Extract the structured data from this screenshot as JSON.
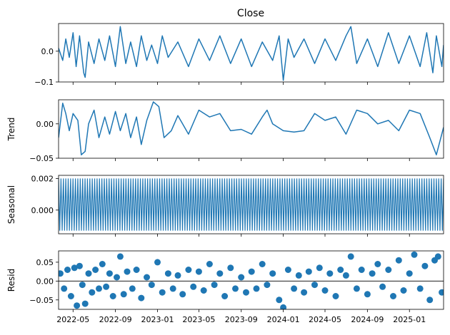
{
  "chart_data": {
    "type": "line",
    "title": "Close",
    "color": "#1f77b4",
    "x_range": [
      "2022-03-20",
      "2025-04-10"
    ],
    "x_ticks": [
      "2022-05",
      "2022-09",
      "2023-01",
      "2023-05",
      "2023-09",
      "2024-01",
      "2024-05",
      "2024-09",
      "2025-01"
    ],
    "panels": [
      {
        "ylabel": "",
        "kind": "line",
        "ylim": [
          -0.1,
          0.09
        ],
        "y_ticks": [
          -0.1,
          0.0
        ],
        "y_tick_labels": [
          "−0.1",
          "0.0"
        ],
        "points": [
          [
            "2022-03-20",
            0.01
          ],
          [
            "2022-04-01",
            -0.03
          ],
          [
            "2022-04-10",
            0.04
          ],
          [
            "2022-04-20",
            -0.02
          ],
          [
            "2022-05-01",
            0.06
          ],
          [
            "2022-05-10",
            -0.05
          ],
          [
            "2022-05-20",
            0.05
          ],
          [
            "2022-06-01",
            -0.07
          ],
          [
            "2022-06-05",
            -0.085
          ],
          [
            "2022-06-15",
            0.03
          ],
          [
            "2022-07-01",
            -0.04
          ],
          [
            "2022-07-15",
            0.04
          ],
          [
            "2022-08-01",
            -0.03
          ],
          [
            "2022-08-15",
            0.05
          ],
          [
            "2022-09-01",
            -0.05
          ],
          [
            "2022-09-15",
            0.08
          ],
          [
            "2022-10-01",
            -0.04
          ],
          [
            "2022-10-15",
            0.03
          ],
          [
            "2022-11-01",
            -0.05
          ],
          [
            "2022-11-15",
            0.05
          ],
          [
            "2022-12-01",
            -0.03
          ],
          [
            "2022-12-15",
            0.02
          ],
          [
            "2023-01-01",
            -0.04
          ],
          [
            "2023-01-15",
            0.05
          ],
          [
            "2023-02-01",
            -0.02
          ],
          [
            "2023-03-01",
            0.03
          ],
          [
            "2023-04-01",
            -0.05
          ],
          [
            "2023-05-01",
            0.04
          ],
          [
            "2023-06-01",
            -0.03
          ],
          [
            "2023-07-01",
            0.05
          ],
          [
            "2023-08-01",
            -0.04
          ],
          [
            "2023-09-01",
            0.04
          ],
          [
            "2023-10-01",
            -0.05
          ],
          [
            "2023-11-01",
            0.03
          ],
          [
            "2023-12-01",
            -0.03
          ],
          [
            "2023-12-20",
            0.05
          ],
          [
            "2024-01-01",
            -0.095
          ],
          [
            "2024-01-15",
            0.04
          ],
          [
            "2024-02-01",
            -0.02
          ],
          [
            "2024-03-01",
            0.04
          ],
          [
            "2024-04-01",
            -0.04
          ],
          [
            "2024-05-01",
            0.04
          ],
          [
            "2024-06-01",
            -0.03
          ],
          [
            "2024-07-01",
            0.05
          ],
          [
            "2024-07-15",
            0.08
          ],
          [
            "2024-08-01",
            -0.04
          ],
          [
            "2024-09-01",
            0.04
          ],
          [
            "2024-10-01",
            -0.05
          ],
          [
            "2024-11-01",
            0.06
          ],
          [
            "2024-12-01",
            -0.04
          ],
          [
            "2025-01-01",
            0.05
          ],
          [
            "2025-02-01",
            -0.05
          ],
          [
            "2025-02-20",
            0.06
          ],
          [
            "2025-03-10",
            -0.07
          ],
          [
            "2025-03-20",
            0.05
          ],
          [
            "2025-04-05",
            -0.05
          ],
          [
            "2025-04-10",
            0.02
          ]
        ]
      },
      {
        "ylabel": "Trend",
        "kind": "line",
        "ylim": [
          -0.05,
          0.035
        ],
        "y_ticks": [
          -0.05,
          0.0
        ],
        "y_tick_labels": [
          "−0.05",
          "0.00"
        ],
        "points": [
          [
            "2022-03-20",
            -0.02
          ],
          [
            "2022-04-01",
            0.03
          ],
          [
            "2022-04-10",
            0.015
          ],
          [
            "2022-04-20",
            -0.01
          ],
          [
            "2022-05-01",
            0.015
          ],
          [
            "2022-05-15",
            0.005
          ],
          [
            "2022-05-25",
            -0.045
          ],
          [
            "2022-06-05",
            -0.04
          ],
          [
            "2022-06-15",
            0.0
          ],
          [
            "2022-07-01",
            0.02
          ],
          [
            "2022-07-15",
            -0.02
          ],
          [
            "2022-08-01",
            0.01
          ],
          [
            "2022-08-15",
            -0.015
          ],
          [
            "2022-09-01",
            0.018
          ],
          [
            "2022-09-15",
            -0.01
          ],
          [
            "2022-10-01",
            0.015
          ],
          [
            "2022-10-15",
            -0.02
          ],
          [
            "2022-11-01",
            0.01
          ],
          [
            "2022-11-15",
            -0.03
          ],
          [
            "2022-12-01",
            0.005
          ],
          [
            "2022-12-20",
            0.032
          ],
          [
            "2023-01-05",
            0.025
          ],
          [
            "2023-01-20",
            -0.02
          ],
          [
            "2023-02-10",
            -0.01
          ],
          [
            "2023-03-01",
            0.012
          ],
          [
            "2023-04-01",
            -0.015
          ],
          [
            "2023-05-01",
            0.02
          ],
          [
            "2023-06-01",
            0.01
          ],
          [
            "2023-07-01",
            0.015
          ],
          [
            "2023-08-01",
            -0.01
          ],
          [
            "2023-09-01",
            -0.008
          ],
          [
            "2023-10-01",
            -0.015
          ],
          [
            "2023-11-01",
            0.01
          ],
          [
            "2023-11-15",
            0.02
          ],
          [
            "2023-12-01",
            0.0
          ],
          [
            "2024-01-01",
            -0.01
          ],
          [
            "2024-02-01",
            -0.012
          ],
          [
            "2024-03-01",
            -0.01
          ],
          [
            "2024-04-01",
            0.015
          ],
          [
            "2024-05-01",
            0.005
          ],
          [
            "2024-06-01",
            0.01
          ],
          [
            "2024-07-01",
            -0.015
          ],
          [
            "2024-08-01",
            0.02
          ],
          [
            "2024-09-01",
            0.015
          ],
          [
            "2024-10-01",
            0.0
          ],
          [
            "2024-11-01",
            0.005
          ],
          [
            "2024-12-01",
            -0.01
          ],
          [
            "2025-01-01",
            0.02
          ],
          [
            "2025-02-01",
            0.015
          ],
          [
            "2025-03-01",
            -0.02
          ],
          [
            "2025-03-20",
            -0.045
          ],
          [
            "2025-04-10",
            -0.005
          ]
        ]
      },
      {
        "ylabel": "Seasonal",
        "kind": "seasonal",
        "ylim": [
          -0.0015,
          0.0022
        ],
        "y_ticks": [
          0.0,
          0.002
        ],
        "y_tick_labels": [
          "0.000",
          "0.002"
        ],
        "amplitude": [
          -0.0013,
          0.002
        ],
        "cycles": 160
      },
      {
        "ylabel": "Resid",
        "kind": "scatter",
        "ylim": [
          -0.075,
          0.08
        ],
        "y_ticks": [
          -0.05,
          0.0,
          0.05
        ],
        "y_tick_labels": [
          "−0.05",
          "0.00",
          "0.05"
        ],
        "points": [
          [
            "2022-03-25",
            0.02
          ],
          [
            "2022-04-05",
            -0.02
          ],
          [
            "2022-04-15",
            0.03
          ],
          [
            "2022-04-25",
            -0.04
          ],
          [
            "2022-05-05",
            0.035
          ],
          [
            "2022-05-12",
            -0.065
          ],
          [
            "2022-05-20",
            0.04
          ],
          [
            "2022-05-28",
            -0.01
          ],
          [
            "2022-06-05",
            -0.06
          ],
          [
            "2022-06-15",
            0.02
          ],
          [
            "2022-06-25",
            -0.03
          ],
          [
            "2022-07-05",
            0.03
          ],
          [
            "2022-07-15",
            -0.02
          ],
          [
            "2022-07-25",
            0.045
          ],
          [
            "2022-08-05",
            -0.015
          ],
          [
            "2022-08-15",
            0.02
          ],
          [
            "2022-08-25",
            -0.04
          ],
          [
            "2022-09-05",
            0.01
          ],
          [
            "2022-09-15",
            0.065
          ],
          [
            "2022-09-25",
            -0.035
          ],
          [
            "2022-10-05",
            0.025
          ],
          [
            "2022-10-20",
            -0.02
          ],
          [
            "2022-11-01",
            0.03
          ],
          [
            "2022-11-15",
            -0.045
          ],
          [
            "2022-12-01",
            0.01
          ],
          [
            "2022-12-15",
            -0.01
          ],
          [
            "2023-01-01",
            0.05
          ],
          [
            "2023-01-15",
            -0.03
          ],
          [
            "2023-02-01",
            0.02
          ],
          [
            "2023-02-15",
            -0.02
          ],
          [
            "2023-03-01",
            0.015
          ],
          [
            "2023-03-15",
            -0.035
          ],
          [
            "2023-04-01",
            0.03
          ],
          [
            "2023-04-15",
            -0.015
          ],
          [
            "2023-05-01",
            0.025
          ],
          [
            "2023-05-15",
            -0.025
          ],
          [
            "2023-06-01",
            0.045
          ],
          [
            "2023-06-15",
            -0.01
          ],
          [
            "2023-07-01",
            0.02
          ],
          [
            "2023-07-15",
            -0.04
          ],
          [
            "2023-08-01",
            0.035
          ],
          [
            "2023-08-15",
            -0.02
          ],
          [
            "2023-09-01",
            0.01
          ],
          [
            "2023-09-15",
            -0.03
          ],
          [
            "2023-10-01",
            0.025
          ],
          [
            "2023-10-15",
            -0.02
          ],
          [
            "2023-11-01",
            0.045
          ],
          [
            "2023-11-15",
            -0.01
          ],
          [
            "2023-12-01",
            0.02
          ],
          [
            "2023-12-20",
            -0.05
          ],
          [
            "2024-01-01",
            -0.07
          ],
          [
            "2024-01-15",
            0.03
          ],
          [
            "2024-02-01",
            -0.02
          ],
          [
            "2024-02-15",
            0.015
          ],
          [
            "2024-03-01",
            -0.03
          ],
          [
            "2024-03-15",
            0.025
          ],
          [
            "2024-04-01",
            -0.01
          ],
          [
            "2024-04-15",
            0.035
          ],
          [
            "2024-05-01",
            -0.025
          ],
          [
            "2024-05-15",
            0.02
          ],
          [
            "2024-06-01",
            -0.04
          ],
          [
            "2024-06-15",
            0.03
          ],
          [
            "2024-07-01",
            0.015
          ],
          [
            "2024-07-15",
            0.065
          ],
          [
            "2024-08-01",
            -0.02
          ],
          [
            "2024-08-15",
            0.03
          ],
          [
            "2024-09-01",
            -0.035
          ],
          [
            "2024-09-15",
            0.02
          ],
          [
            "2024-10-01",
            0.045
          ],
          [
            "2024-10-15",
            -0.015
          ],
          [
            "2024-11-01",
            0.03
          ],
          [
            "2024-11-15",
            -0.04
          ],
          [
            "2024-12-01",
            0.055
          ],
          [
            "2024-12-15",
            -0.025
          ],
          [
            "2025-01-01",
            0.02
          ],
          [
            "2025-01-15",
            0.07
          ],
          [
            "2025-02-01",
            -0.02
          ],
          [
            "2025-02-15",
            0.04
          ],
          [
            "2025-03-01",
            -0.05
          ],
          [
            "2025-03-15",
            0.055
          ],
          [
            "2025-03-25",
            0.065
          ],
          [
            "2025-04-05",
            -0.03
          ]
        ]
      }
    ]
  }
}
